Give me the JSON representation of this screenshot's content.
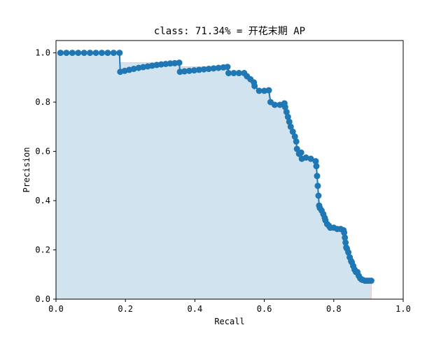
{
  "chart_data": {
    "type": "line",
    "title": "class: 71.34% = 开花末期 AP",
    "xlabel": "Recall",
    "ylabel": "Precision",
    "xlim": [
      0.0,
      1.0
    ],
    "ylim": [
      0.0,
      1.05
    ],
    "xticks": [
      "0.0",
      "0.2",
      "0.4",
      "0.6",
      "0.8",
      "1.0"
    ],
    "yticks": [
      "0.0",
      "0.2",
      "0.4",
      "0.6",
      "0.8",
      "1.0"
    ],
    "grid": false,
    "colors": {
      "line": "#1f77b4",
      "fill": "#d2e3f0",
      "interp_edge": "#e7b8b8"
    },
    "series": [
      {
        "x": [
          0.013,
          0.03,
          0.047,
          0.064,
          0.081,
          0.098,
          0.115,
          0.132,
          0.149,
          0.166,
          0.183,
          0.185,
          0.198,
          0.211,
          0.224,
          0.238,
          0.251,
          0.264,
          0.277,
          0.29,
          0.303,
          0.316,
          0.329,
          0.342,
          0.355,
          0.357,
          0.37,
          0.384,
          0.398,
          0.412,
          0.426,
          0.44,
          0.454,
          0.468,
          0.482,
          0.494,
          0.497,
          0.512,
          0.527,
          0.542,
          0.55,
          0.56,
          0.57,
          0.572,
          0.585,
          0.6,
          0.613,
          0.618,
          0.63,
          0.645,
          0.658,
          0.66,
          0.664,
          0.668,
          0.672,
          0.676,
          0.682,
          0.688,
          0.692,
          0.694,
          0.7,
          0.706,
          0.708,
          0.72,
          0.734,
          0.748,
          0.75,
          0.752,
          0.754,
          0.756,
          0.758,
          0.76,
          0.765,
          0.77,
          0.774,
          0.776,
          0.781,
          0.786,
          0.79,
          0.8,
          0.81,
          0.82,
          0.828,
          0.83,
          0.832,
          0.834,
          0.836,
          0.838,
          0.842,
          0.846,
          0.85,
          0.852,
          0.856,
          0.86,
          0.864,
          0.868,
          0.872,
          0.876,
          0.88,
          0.884,
          0.89,
          0.896,
          0.902,
          0.908
        ],
        "y": [
          1.0,
          1.0,
          1.0,
          1.0,
          1.0,
          1.0,
          1.0,
          1.0,
          1.0,
          1.0,
          1.0,
          0.923,
          0.927,
          0.931,
          0.935,
          0.939,
          0.942,
          0.945,
          0.948,
          0.951,
          0.953,
          0.955,
          0.957,
          0.958,
          0.96,
          0.923,
          0.925,
          0.927,
          0.929,
          0.931,
          0.933,
          0.935,
          0.937,
          0.939,
          0.941,
          0.943,
          0.918,
          0.918,
          0.918,
          0.918,
          0.905,
          0.893,
          0.88,
          0.865,
          0.846,
          0.846,
          0.848,
          0.8,
          0.789,
          0.789,
          0.795,
          0.78,
          0.76,
          0.74,
          0.72,
          0.7,
          0.68,
          0.66,
          0.64,
          0.61,
          0.59,
          0.595,
          0.57,
          0.575,
          0.57,
          0.56,
          0.54,
          0.5,
          0.46,
          0.42,
          0.38,
          0.37,
          0.36,
          0.345,
          0.33,
          0.32,
          0.305,
          0.298,
          0.29,
          0.29,
          0.285,
          0.285,
          0.28,
          0.27,
          0.25,
          0.23,
          0.21,
          0.205,
          0.19,
          0.17,
          0.155,
          0.15,
          0.135,
          0.12,
          0.11,
          0.11,
          0.095,
          0.085,
          0.08,
          0.078,
          0.075,
          0.075,
          0.075,
          0.075
        ]
      }
    ]
  }
}
